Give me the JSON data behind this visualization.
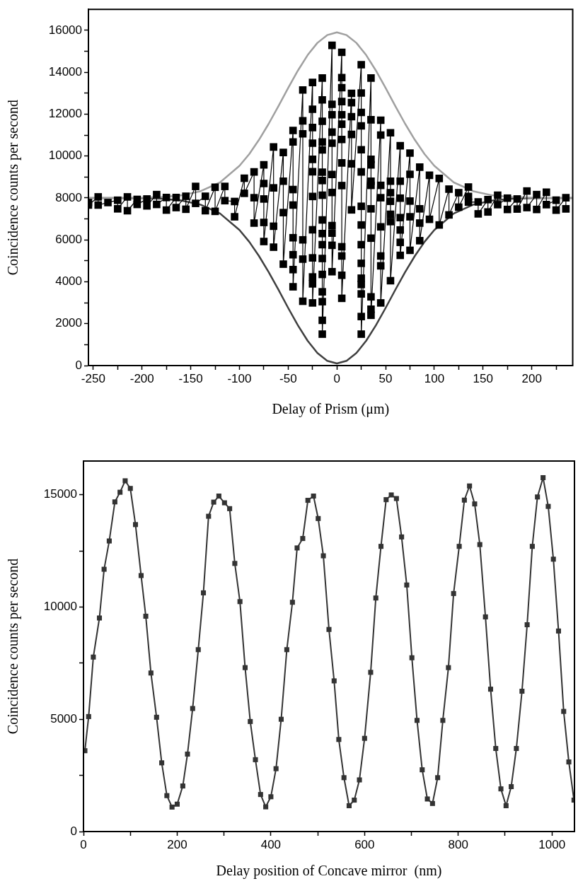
{
  "chart_data": [
    {
      "type": "line",
      "xlabel": "Delay of Prism (μm)",
      "ylabel": "Coincidence counts per second",
      "xlim": [
        -255,
        242
      ],
      "ylim": [
        0,
        17000
      ],
      "xticks": [
        -250,
        {
          "value": -225,
          "label": null
        },
        -200,
        {
          "value": -175,
          "label": null
        },
        -150,
        {
          "value": -125,
          "label": null
        },
        -100,
        {
          "value": -75,
          "label": null
        },
        -50,
        {
          "value": -25,
          "label": null
        },
        0,
        {
          "value": 25,
          "label": null
        },
        50,
        {
          "value": 75,
          "label": null
        },
        100,
        {
          "value": 125,
          "label": null
        },
        150,
        {
          "value": 175,
          "label": null
        },
        200,
        {
          "value": 225,
          "label": null
        }
      ],
      "yticks": [
        0,
        {
          "value": 1000,
          "label": null
        },
        2000,
        {
          "value": 3000,
          "label": null
        },
        4000,
        {
          "value": 5000,
          "label": null
        },
        6000,
        {
          "value": 7000,
          "label": null
        },
        8000,
        {
          "value": 9000,
          "label": null
        },
        10000,
        {
          "value": 11000,
          "label": null
        },
        12000,
        {
          "value": 13000,
          "label": null
        },
        14000,
        {
          "value": 15000,
          "label": null
        },
        16000
      ],
      "grid": false,
      "legend": false,
      "series": [
        {
          "color": "#000000",
          "marker": "square",
          "x": [
            -255,
            -255,
            -245,
            -245,
            -235,
            -225,
            -225,
            -215,
            -215,
            -205,
            -205,
            -195,
            -195,
            -185,
            -185,
            -175,
            -175,
            -165,
            -165,
            -155,
            -155,
            -145,
            -145,
            -135,
            -135,
            -125,
            -125,
            -115,
            -115,
            -105,
            -105,
            -95,
            -95,
            -85,
            -85,
            -85,
            -75,
            -75,
            -75,
            -75,
            -75,
            -65,
            -65,
            -65,
            -65,
            -55,
            -55,
            -55,
            -55,
            -45,
            -45,
            -45,
            -45,
            -45,
            -45,
            -45,
            -45,
            -35,
            -35,
            -35,
            -35,
            -35,
            -35,
            -25,
            -25,
            -25,
            -25,
            -25,
            -25,
            -25,
            -25,
            -25,
            -25,
            -25,
            -25,
            -15,
            -15,
            -15,
            -15,
            -15,
            -15,
            -15,
            -15,
            -15,
            -15,
            -15,
            -15,
            -15,
            -15,
            -15,
            -15,
            -15,
            -5,
            -5,
            -5,
            -5,
            -5,
            -5,
            -5,
            -5,
            -5,
            -5,
            -5,
            5,
            5,
            5,
            5,
            5,
            5,
            5,
            5,
            5,
            5,
            5,
            5,
            5,
            15,
            15,
            15,
            15,
            15,
            15,
            25,
            25,
            25,
            25,
            25,
            25,
            25,
            25,
            25,
            25,
            25,
            25,
            25,
            25,
            25,
            35,
            35,
            35,
            35,
            35,
            35,
            35,
            35,
            35,
            35,
            35,
            45,
            45,
            45,
            45,
            45,
            45,
            45,
            45,
            55,
            55,
            55,
            55,
            55,
            55,
            55,
            65,
            65,
            65,
            65,
            65,
            65,
            65,
            75,
            75,
            75,
            75,
            75,
            85,
            85,
            85,
            85,
            95,
            95,
            105,
            105,
            115,
            115,
            125,
            125,
            135,
            135,
            135,
            145,
            145,
            155,
            155,
            165,
            165,
            175,
            175,
            185,
            185,
            195,
            195,
            205,
            205,
            215,
            215,
            225,
            225,
            235,
            235
          ],
          "values": [
            7780,
            7660,
            8050,
            7660,
            7780,
            7890,
            7480,
            8050,
            7390,
            7930,
            7690,
            7950,
            7620,
            8160,
            7690,
            8020,
            7420,
            8020,
            7540,
            8080,
            7460,
            8550,
            7740,
            8080,
            7390,
            8510,
            7360,
            8550,
            7870,
            7830,
            7100,
            8940,
            8220,
            9240,
            8010,
            6800,
            9580,
            8690,
            7950,
            6830,
            5920,
            10430,
            8480,
            6650,
            5650,
            10170,
            8800,
            7300,
            4840,
            11220,
            10670,
            8400,
            7660,
            6100,
            5290,
            4580,
            3760,
            13150,
            11680,
            11060,
            6000,
            5080,
            3070,
            13510,
            12230,
            11360,
            10610,
            9840,
            9250,
            8070,
            6480,
            5140,
            4230,
            3900,
            2990,
            13720,
            12680,
            11660,
            10670,
            10290,
            9230,
            8830,
            8130,
            6950,
            6300,
            5770,
            5110,
            4350,
            3520,
            3050,
            2160,
            1500,
            15280,
            12470,
            11970,
            11140,
            10610,
            9120,
            8260,
            6680,
            6320,
            5740,
            4480,
            14950,
            13740,
            13260,
            12600,
            11970,
            11520,
            10790,
            9670,
            8590,
            5670,
            5230,
            4310,
            3210,
            12990,
            12550,
            11880,
            11030,
            9630,
            7430,
            14360,
            13010,
            12080,
            11440,
            10300,
            9240,
            7600,
            6710,
            5770,
            4880,
            4170,
            3870,
            3420,
            2340,
            1500,
            13720,
            11730,
            9840,
            9580,
            8800,
            8600,
            7480,
            6080,
            3280,
            2690,
            2400,
            11710,
            11000,
            8600,
            8010,
            6620,
            5230,
            4760,
            2990,
            11110,
            8800,
            8250,
            7840,
            7220,
            6870,
            4050,
            10490,
            8800,
            7990,
            7060,
            6470,
            5880,
            5260,
            10140,
            9130,
            7850,
            7100,
            5500,
            9470,
            7480,
            6800,
            5960,
            9080,
            6980,
            8930,
            6710,
            8420,
            7190,
            8250,
            7560,
            8520,
            8070,
            7800,
            7810,
            7240,
            7920,
            7330,
            8130,
            7680,
            7990,
            7450,
            7950,
            7470,
            8330,
            7540,
            8160,
            7450,
            8270,
            7680,
            7890,
            7420,
            8010,
            7480
          ]
        },
        {
          "color": "#a0a0a0",
          "marker": "none",
          "x": [
            -255,
            -200,
            -180,
            -160,
            -140,
            -120,
            -100,
            -90,
            -80,
            -70,
            -60,
            -50,
            -40,
            -30,
            -20,
            -10,
            0,
            10,
            20,
            30,
            40,
            50,
            60,
            70,
            80,
            90,
            100,
            120,
            140,
            160,
            180,
            200,
            242
          ],
          "values": [
            8000,
            8010,
            8040,
            8120,
            8320,
            8740,
            9530,
            10090,
            10770,
            11540,
            12380,
            13250,
            14080,
            14820,
            15400,
            15770,
            15900,
            15770,
            15400,
            14820,
            14080,
            13250,
            12380,
            11540,
            10770,
            10090,
            9530,
            8740,
            8320,
            8120,
            8040,
            8010,
            8000
          ]
        },
        {
          "color": "#404040",
          "marker": "none",
          "x": [
            -255,
            -200,
            -180,
            -160,
            -140,
            -120,
            -100,
            -90,
            -80,
            -70,
            -60,
            -50,
            -40,
            -30,
            -20,
            -10,
            0,
            10,
            20,
            30,
            40,
            50,
            60,
            70,
            80,
            90,
            100,
            120,
            140,
            160,
            180,
            200,
            242
          ],
          "values": [
            8000,
            7990,
            7960,
            7880,
            7680,
            7260,
            6470,
            5910,
            5230,
            4460,
            3620,
            2750,
            1920,
            1180,
            600,
            230,
            100,
            230,
            600,
            1180,
            1920,
            2750,
            3620,
            4460,
            5230,
            5910,
            6470,
            7260,
            7680,
            7880,
            7960,
            7990,
            8000
          ]
        }
      ]
    },
    {
      "type": "line",
      "xlabel": "Delay position of Concave mirror  (nm)",
      "ylabel": "Coincidence counts per second",
      "xlim": [
        0,
        1048
      ],
      "ylim": [
        0,
        16500
      ],
      "xticks": [
        0,
        {
          "value": 100,
          "label": null
        },
        200,
        {
          "value": 300,
          "label": null
        },
        400,
        {
          "value": 500,
          "label": null
        },
        600,
        {
          "value": 700,
          "label": null
        },
        800,
        {
          "value": 900,
          "label": null
        },
        1000
      ],
      "yticks": [
        0,
        {
          "value": 2500,
          "label": null
        },
        5000,
        {
          "value": 7500,
          "label": null
        },
        10000,
        {
          "value": 12500,
          "label": null
        },
        15000
      ],
      "grid": false,
      "legend": false,
      "series": [
        {
          "color": "#333333",
          "marker": "square",
          "x": [
            3,
            11,
            21,
            34,
            44,
            55,
            67,
            78,
            89,
            100,
            111,
            123,
            133,
            144,
            156,
            167,
            178,
            189,
            200,
            212,
            222,
            233,
            245,
            256,
            267,
            278,
            289,
            301,
            312,
            323,
            334,
            345,
            356,
            367,
            378,
            389,
            400,
            411,
            422,
            434,
            446,
            456,
            468,
            479,
            491,
            501,
            512,
            524,
            535,
            545,
            556,
            567,
            578,
            589,
            600,
            613,
            624,
            635,
            646,
            657,
            668,
            679,
            690,
            701,
            712,
            723,
            734,
            745,
            756,
            767,
            779,
            790,
            802,
            813,
            824,
            835,
            846,
            858,
            869,
            880,
            891,
            902,
            913,
            924,
            936,
            947,
            958,
            969,
            981,
            992,
            1003,
            1014,
            1025,
            1036,
            1047
          ],
          "values": [
            3600,
            5120,
            7770,
            9510,
            11680,
            12940,
            14680,
            15110,
            15620,
            15280,
            13670,
            11400,
            9590,
            7060,
            5090,
            3060,
            1600,
            1090,
            1220,
            2030,
            3450,
            5480,
            8100,
            10630,
            14040,
            14670,
            14940,
            14640,
            14380,
            11940,
            10240,
            7300,
            4900,
            3200,
            1650,
            1100,
            1550,
            2800,
            5000,
            8100,
            10210,
            12630,
            13050,
            14750,
            14940,
            13940,
            12280,
            9000,
            6710,
            4100,
            2400,
            1150,
            1400,
            2300,
            4150,
            7090,
            10400,
            12700,
            14780,
            14990,
            14830,
            13120,
            10980,
            7740,
            4950,
            2750,
            1450,
            1250,
            2400,
            4950,
            7300,
            10600,
            12700,
            14760,
            15390,
            14590,
            12780,
            9560,
            6340,
            3700,
            1900,
            1150,
            2000,
            3700,
            6250,
            9210,
            12700,
            14900,
            15760,
            14480,
            12130,
            8930,
            5350,
            3100,
            1400
          ]
        }
      ]
    }
  ]
}
